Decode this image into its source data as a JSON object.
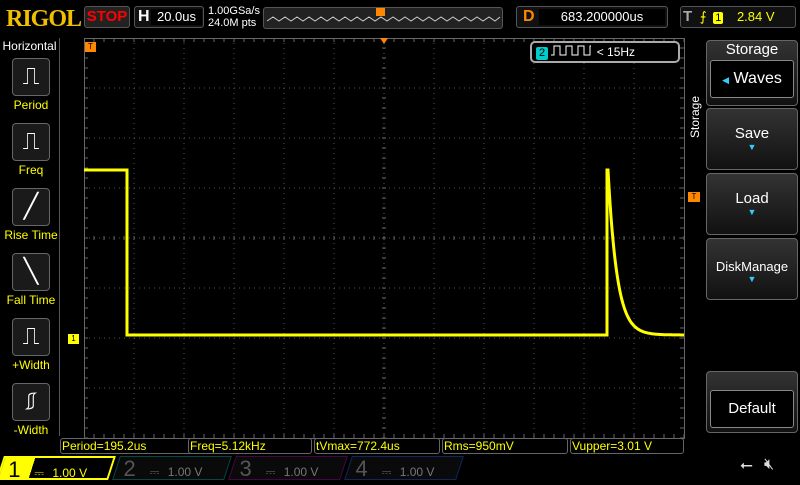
{
  "brand": "RIGOL",
  "run_state": "STOP",
  "horizontal": {
    "label": "H",
    "timebase": "20.0us",
    "sample_rate": "1.00GSa/s",
    "memory_depth": "24.0M pts"
  },
  "delay": {
    "label": "D",
    "value": "683.200000us"
  },
  "trigger": {
    "label": "T",
    "edge": "rising",
    "source": "1",
    "level": "2.84 V"
  },
  "left_menu": {
    "title": "Horizontal",
    "items": [
      {
        "label": "Period",
        "icon": "period-icon"
      },
      {
        "label": "Freq",
        "icon": "frequency-icon"
      },
      {
        "label": "Rise Time",
        "icon": "rise-time-icon"
      },
      {
        "label": "Fall Time",
        "icon": "fall-time-icon"
      },
      {
        "label": "+Width",
        "icon": "positive-width-icon"
      },
      {
        "label": "-Width",
        "icon": "negative-width-icon"
      }
    ]
  },
  "freq_counter": {
    "channel": "2",
    "value": "< 15Hz"
  },
  "right_menu": {
    "title": "Storage",
    "side_label": "Storage",
    "items": [
      {
        "label": "Waves"
      },
      {
        "label": "Save"
      },
      {
        "label": "Load"
      },
      {
        "label": "DiskManage"
      },
      {
        "label": "Default"
      }
    ]
  },
  "measurements": [
    "Period=195.2us",
    "Freq=5.12kHz",
    "tVmax=772.4us",
    "Rms=950mV",
    "Vupper=3.01 V"
  ],
  "channels": [
    {
      "num": "1",
      "scale": "1.00 V",
      "color": "#ffff00",
      "active": true
    },
    {
      "num": "2",
      "scale": "1.00 V",
      "color": "#00c0c0",
      "active": false
    },
    {
      "num": "3",
      "scale": "1.00 V",
      "color": "#c000c0",
      "active": false
    },
    {
      "num": "4",
      "scale": "1.00 V",
      "color": "#2060ff",
      "active": false
    }
  ],
  "colors": {
    "ch1": "#ffff00",
    "trigger": "#ff8800",
    "accent": "#33ccff"
  }
}
